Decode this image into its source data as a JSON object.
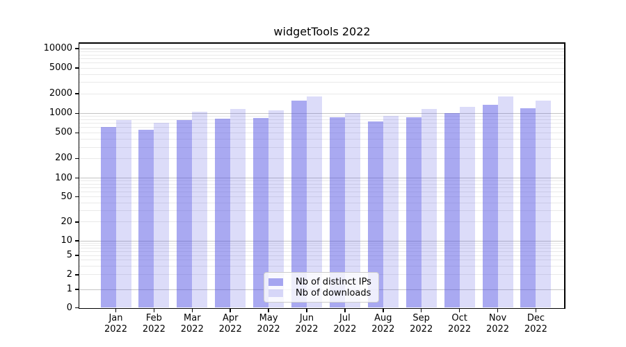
{
  "title": "widgetTools 2022",
  "chart_data": {
    "type": "bar",
    "title": "widgetTools 2022",
    "categories": [
      "Jan",
      "Feb",
      "Mar",
      "Apr",
      "May",
      "Jun",
      "Jul",
      "Aug",
      "Sep",
      "Oct",
      "Nov",
      "Dec"
    ],
    "year": "2022",
    "series": [
      {
        "name": "Nb of distinct IPs",
        "color": "rgba(80,80,226,0.49)",
        "values": [
          610,
          555,
          790,
          820,
          840,
          1590,
          860,
          755,
          860,
          1000,
          1370,
          1190
        ]
      },
      {
        "name": "Nb of downloads",
        "color": "rgba(80,80,226,0.20)",
        "values": [
          790,
          720,
          1070,
          1160,
          1110,
          1820,
          1010,
          920,
          1170,
          1250,
          1810,
          1570
        ]
      }
    ],
    "yscale": "symlog",
    "yticks": [
      0,
      1,
      2,
      5,
      10,
      20,
      50,
      100,
      200,
      500,
      1000,
      2000,
      5000,
      10000
    ],
    "ylim": [
      0,
      12000
    ],
    "grid": "both",
    "legend_position": "lower-center"
  },
  "colors": {
    "grid_major": "#c3c3c3",
    "grid_minor": "#e9e9e9",
    "spine": "#000000",
    "background": "#ffffff",
    "legend_border": "#cccccc",
    "text": "#000000"
  }
}
